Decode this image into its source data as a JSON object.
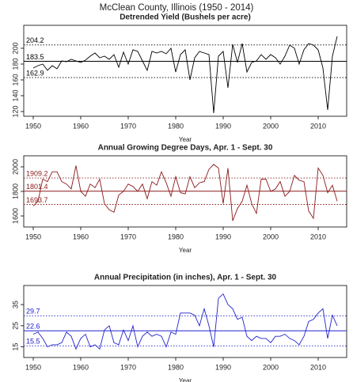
{
  "title": "McClean County, Illinois (1950 - 2014)",
  "chart_data": [
    {
      "type": "line",
      "title": "Detrended Yield (Bushels per acre)",
      "xlabel": "Year",
      "color": "#000000",
      "x": [
        1950,
        1951,
        1952,
        1953,
        1954,
        1955,
        1956,
        1957,
        1958,
        1959,
        1960,
        1961,
        1962,
        1963,
        1964,
        1965,
        1966,
        1967,
        1968,
        1969,
        1970,
        1971,
        1972,
        1973,
        1974,
        1975,
        1976,
        1977,
        1978,
        1979,
        1980,
        1981,
        1982,
        1983,
        1984,
        1985,
        1986,
        1987,
        1988,
        1989,
        1990,
        1991,
        1992,
        1993,
        1994,
        1995,
        1996,
        1997,
        1998,
        1999,
        2000,
        2001,
        2002,
        2003,
        2004,
        2005,
        2006,
        2007,
        2008,
        2009,
        2010,
        2011,
        2012,
        2013,
        2014
      ],
      "values": [
        175,
        178,
        180,
        172,
        178,
        174,
        184,
        183,
        186,
        184,
        182,
        185,
        190,
        194,
        188,
        190,
        186,
        192,
        176,
        195,
        180,
        198,
        196,
        184,
        172,
        196,
        194,
        196,
        193,
        200,
        170,
        192,
        198,
        160,
        188,
        196,
        194,
        192,
        118,
        190,
        196,
        150,
        205,
        182,
        206,
        170,
        182,
        184,
        192,
        186,
        192,
        188,
        180,
        190,
        204,
        200,
        180,
        198,
        206,
        204,
        198,
        175,
        122,
        190,
        215
      ],
      "xlim": [
        1948,
        2016
      ],
      "xticks": [
        1950,
        1960,
        1970,
        1980,
        1990,
        2000,
        2010
      ],
      "ylim": [
        114,
        229
      ],
      "yticks": [
        120,
        140,
        160,
        180,
        200
      ],
      "reference_lines": [
        {
          "value": 204.2,
          "dash": "dotted"
        },
        {
          "value": 183.5,
          "dash": "solid"
        },
        {
          "value": 162.9,
          "dash": "dotted"
        }
      ]
    },
    {
      "type": "line",
      "title": "Annual Growing Degree Days, Apr. 1 - Sept. 30",
      "xlabel": "Year",
      "color": "#8b1a1a",
      "x": [
        1950,
        1951,
        1952,
        1953,
        1954,
        1955,
        1956,
        1957,
        1958,
        1959,
        1960,
        1961,
        1962,
        1963,
        1964,
        1965,
        1966,
        1967,
        1968,
        1969,
        1970,
        1971,
        1972,
        1973,
        1974,
        1975,
        1976,
        1977,
        1978,
        1979,
        1980,
        1981,
        1982,
        1983,
        1984,
        1985,
        1986,
        1987,
        1988,
        1989,
        1990,
        1991,
        1992,
        1993,
        1994,
        1995,
        1996,
        1997,
        1998,
        1999,
        2000,
        2001,
        2002,
        2003,
        2004,
        2005,
        2006,
        2007,
        2008,
        2009,
        2010,
        2011,
        2012,
        2013,
        2014
      ],
      "values": [
        1680,
        1720,
        1900,
        1880,
        1960,
        1960,
        1880,
        1860,
        1820,
        2010,
        1800,
        1760,
        1860,
        1830,
        1900,
        1700,
        1650,
        1630,
        1770,
        1800,
        1860,
        1840,
        1800,
        1860,
        1740,
        1880,
        1850,
        1960,
        1870,
        1760,
        1920,
        1790,
        1780,
        1920,
        1830,
        1870,
        1880,
        1980,
        2020,
        1990,
        1700,
        1990,
        1560,
        1660,
        1720,
        1850,
        1700,
        1620,
        1900,
        1900,
        1800,
        1820,
        1880,
        1760,
        1800,
        1930,
        1890,
        1880,
        1640,
        1580,
        1990,
        1930,
        1790,
        1850,
        1720
      ],
      "xlim": [
        1948,
        2016
      ],
      "xticks": [
        1950,
        1960,
        1970,
        1980,
        1990,
        2000,
        2010
      ],
      "ylim": [
        1510,
        2090
      ],
      "yticks": [
        1600,
        1800,
        2000
      ],
      "reference_lines": [
        {
          "value": 1909.2,
          "dash": "dotted"
        },
        {
          "value": 1801.4,
          "dash": "solid"
        },
        {
          "value": 1693.7,
          "dash": "dotted"
        }
      ]
    },
    {
      "type": "line",
      "title": "Annual Precipitation (in inches), Apr. 1 - Sept. 30",
      "xlabel": "Year",
      "color": "#2222cc",
      "x": [
        1950,
        1951,
        1952,
        1953,
        1954,
        1955,
        1956,
        1957,
        1958,
        1959,
        1960,
        1961,
        1962,
        1963,
        1964,
        1965,
        1966,
        1967,
        1968,
        1969,
        1970,
        1971,
        1972,
        1973,
        1974,
        1975,
        1976,
        1977,
        1978,
        1979,
        1980,
        1981,
        1982,
        1983,
        1984,
        1985,
        1986,
        1987,
        1988,
        1989,
        1990,
        1991,
        1992,
        1993,
        1994,
        1995,
        1996,
        1997,
        1998,
        1999,
        2000,
        2001,
        2002,
        2003,
        2004,
        2005,
        2006,
        2007,
        2008,
        2009,
        2010,
        2011,
        2012,
        2013,
        2014
      ],
      "values": [
        21,
        22,
        19,
        15,
        16,
        16,
        17,
        22,
        20,
        14,
        19,
        21,
        15,
        16,
        14,
        23,
        25,
        17,
        16,
        23,
        18,
        25,
        15,
        20,
        22,
        20,
        21,
        20,
        15,
        22,
        21,
        31,
        31,
        31,
        30,
        25,
        33,
        25,
        15,
        38,
        40,
        35,
        33,
        28,
        29,
        20,
        18,
        20,
        19,
        19,
        17,
        20,
        20,
        21,
        19,
        18,
        16,
        20,
        27,
        28,
        31,
        33,
        19,
        30,
        25
      ],
      "xlim": [
        1948,
        2016
      ],
      "xticks": [
        1950,
        1960,
        1970,
        1980,
        1990,
        2000,
        2010
      ],
      "ylim": [
        10,
        44
      ],
      "yticks": [
        15,
        25,
        35
      ],
      "reference_lines": [
        {
          "value": 29.7,
          "dash": "dotted"
        },
        {
          "value": 22.6,
          "dash": "solid"
        },
        {
          "value": 15.5,
          "dash": "dotted"
        }
      ]
    }
  ]
}
